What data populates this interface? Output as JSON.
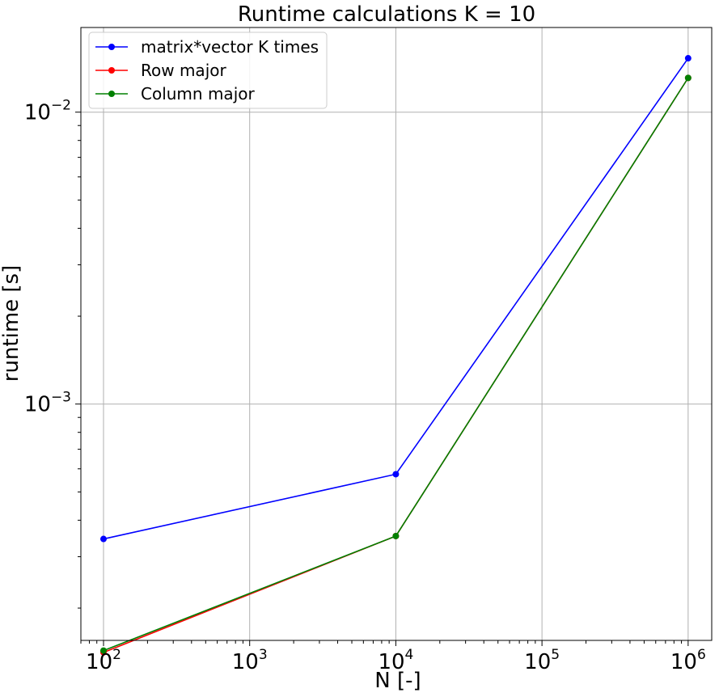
{
  "chart_data": {
    "type": "line",
    "title": "Runtime calculations K = 10",
    "xlabel": "N [-]",
    "ylabel": "runtime [s]",
    "x_scale": "log",
    "y_scale": "log",
    "xlim": [
      70,
      1450000
    ],
    "ylim": [
      0.000155,
      0.0195
    ],
    "grid": true,
    "legend_position": "top-left",
    "x_ticks": [
      {
        "value": 100,
        "base": "10",
        "exp": "2"
      },
      {
        "value": 1000,
        "base": "10",
        "exp": "3"
      },
      {
        "value": 10000,
        "base": "10",
        "exp": "4"
      },
      {
        "value": 100000,
        "base": "10",
        "exp": "5"
      },
      {
        "value": 1000000,
        "base": "10",
        "exp": "6"
      }
    ],
    "y_ticks": [
      {
        "value": 0.001,
        "base": "10",
        "exp": "−3"
      },
      {
        "value": 0.01,
        "base": "10",
        "exp": "−2"
      }
    ],
    "x": [
      100,
      10000,
      1000000
    ],
    "series": [
      {
        "name": "matrix*vector K times",
        "color": "#0000ff",
        "values": [
          0.000345,
          0.000575,
          0.0153
        ]
      },
      {
        "name": "Row major",
        "color": "#ff0000",
        "values": [
          0.000141,
          0.000353,
          0.0131
        ]
      },
      {
        "name": "Column major",
        "color": "#008000",
        "values": [
          0.000143,
          0.000353,
          0.0131
        ]
      }
    ]
  }
}
